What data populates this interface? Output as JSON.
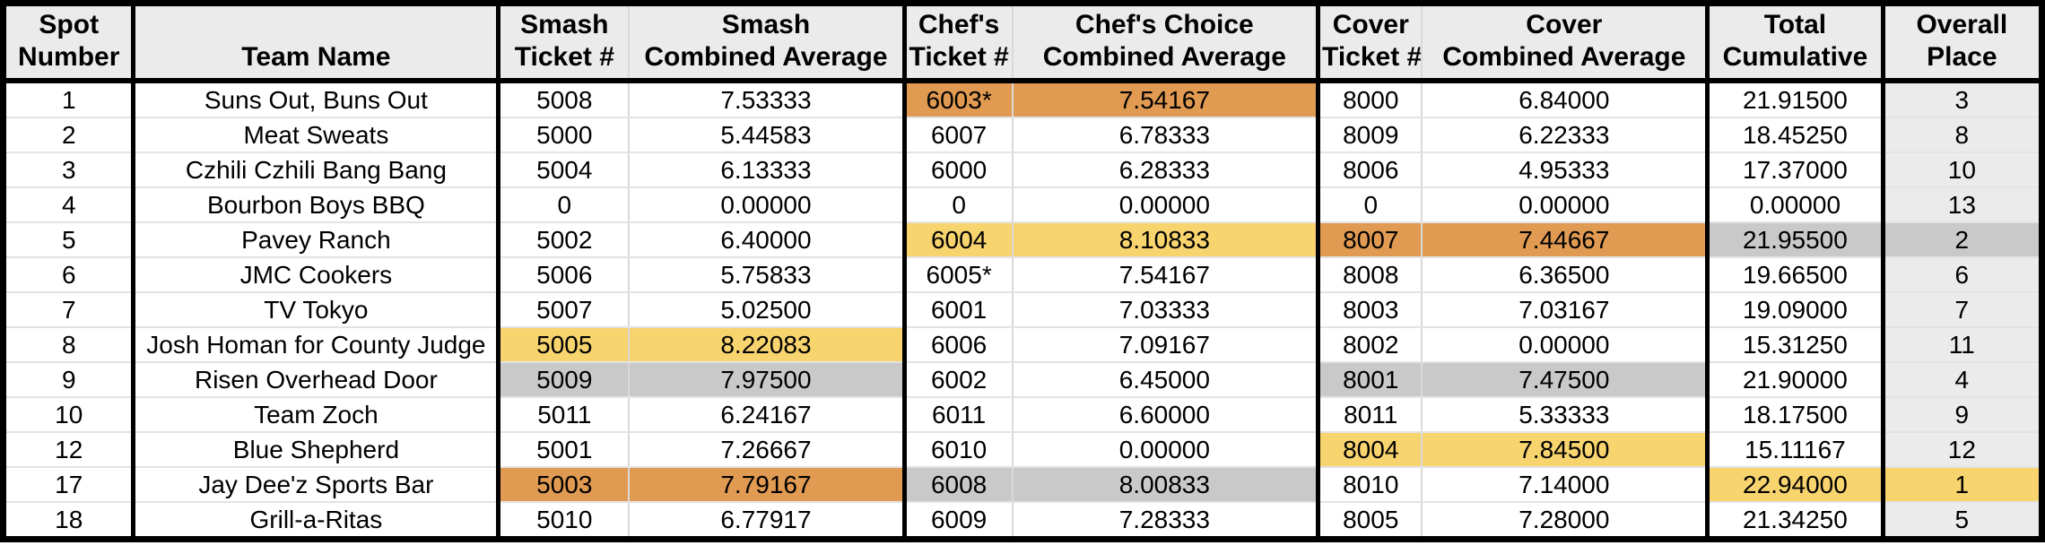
{
  "colors": {
    "header_bg": "#EBEBEB",
    "place_column_bg": "#EBEBEB",
    "highlight_first_yellow": "#F8D46E",
    "highlight_second_gray": "#C9C9C9",
    "highlight_third_orange": "#E19A52",
    "border_black": "#000000"
  },
  "table": {
    "headers": [
      {
        "key": "spot",
        "line1": "Spot",
        "line2": "Number"
      },
      {
        "key": "team",
        "line1": "",
        "line2": "Team Name"
      },
      {
        "key": "smash_ticket",
        "line1": "Smash",
        "line2": "Ticket #"
      },
      {
        "key": "smash_avg",
        "line1": "Smash",
        "line2": "Combined Average"
      },
      {
        "key": "chefs_ticket",
        "line1": "Chef's",
        "line2": "Ticket #"
      },
      {
        "key": "chefs_avg",
        "line1": "Chef's Choice",
        "line2": "Combined Average"
      },
      {
        "key": "cover_ticket",
        "line1": "Cover",
        "line2": "Ticket #"
      },
      {
        "key": "cover_avg",
        "line1": "Cover",
        "line2": "Combined Average"
      },
      {
        "key": "total",
        "line1": "Total",
        "line2": "Cumulative"
      },
      {
        "key": "place",
        "line1": "Overall",
        "line2": "Place"
      }
    ],
    "rows": [
      {
        "spot": "1",
        "team": "Suns Out, Buns Out",
        "smash_ticket": "5008",
        "smash_avg": "7.53333",
        "chefs_ticket": "6003*",
        "chefs_avg": "7.54167",
        "cover_ticket": "8000",
        "cover_avg": "6.84000",
        "total": "21.91500",
        "place": "3",
        "highlights": {
          "chefs_ticket": "orange",
          "chefs_avg": "orange"
        }
      },
      {
        "spot": "2",
        "team": "Meat Sweats",
        "smash_ticket": "5000",
        "smash_avg": "5.44583",
        "chefs_ticket": "6007",
        "chefs_avg": "6.78333",
        "cover_ticket": "8009",
        "cover_avg": "6.22333",
        "total": "18.45250",
        "place": "8",
        "highlights": {}
      },
      {
        "spot": "3",
        "team": "Czhili Czhili Bang Bang",
        "smash_ticket": "5004",
        "smash_avg": "6.13333",
        "chefs_ticket": "6000",
        "chefs_avg": "6.28333",
        "cover_ticket": "8006",
        "cover_avg": "4.95333",
        "total": "17.37000",
        "place": "10",
        "highlights": {}
      },
      {
        "spot": "4",
        "team": "Bourbon Boys BBQ",
        "smash_ticket": "0",
        "smash_avg": "0.00000",
        "chefs_ticket": "0",
        "chefs_avg": "0.00000",
        "cover_ticket": "0",
        "cover_avg": "0.00000",
        "total": "0.00000",
        "place": "13",
        "highlights": {}
      },
      {
        "spot": "5",
        "team": "Pavey Ranch",
        "smash_ticket": "5002",
        "smash_avg": "6.40000",
        "chefs_ticket": "6004",
        "chefs_avg": "8.10833",
        "cover_ticket": "8007",
        "cover_avg": "7.44667",
        "total": "21.95500",
        "place": "2",
        "highlights": {
          "chefs_ticket": "yellow",
          "chefs_avg": "yellow",
          "cover_ticket": "orange",
          "cover_avg": "orange",
          "total": "gray",
          "place": "gray"
        }
      },
      {
        "spot": "6",
        "team": "JMC Cookers",
        "smash_ticket": "5006",
        "smash_avg": "5.75833",
        "chefs_ticket": "6005*",
        "chefs_avg": "7.54167",
        "cover_ticket": "8008",
        "cover_avg": "6.36500",
        "total": "19.66500",
        "place": "6",
        "highlights": {}
      },
      {
        "spot": "7",
        "team": "TV Tokyo",
        "smash_ticket": "5007",
        "smash_avg": "5.02500",
        "chefs_ticket": "6001",
        "chefs_avg": "7.03333",
        "cover_ticket": "8003",
        "cover_avg": "7.03167",
        "total": "19.09000",
        "place": "7",
        "highlights": {}
      },
      {
        "spot": "8",
        "team": "Josh Homan for County Judge",
        "smash_ticket": "5005",
        "smash_avg": "8.22083",
        "chefs_ticket": "6006",
        "chefs_avg": "7.09167",
        "cover_ticket": "8002",
        "cover_avg": "0.00000",
        "total": "15.31250",
        "place": "11",
        "highlights": {
          "smash_ticket": "yellow",
          "smash_avg": "yellow"
        }
      },
      {
        "spot": "9",
        "team": "Risen Overhead Door",
        "smash_ticket": "5009",
        "smash_avg": "7.97500",
        "chefs_ticket": "6002",
        "chefs_avg": "6.45000",
        "cover_ticket": "8001",
        "cover_avg": "7.47500",
        "total": "21.90000",
        "place": "4",
        "highlights": {
          "smash_ticket": "gray",
          "smash_avg": "gray",
          "cover_ticket": "gray",
          "cover_avg": "gray"
        }
      },
      {
        "spot": "10",
        "team": "Team Zoch",
        "smash_ticket": "5011",
        "smash_avg": "6.24167",
        "chefs_ticket": "6011",
        "chefs_avg": "6.60000",
        "cover_ticket": "8011",
        "cover_avg": "5.33333",
        "total": "18.17500",
        "place": "9",
        "highlights": {}
      },
      {
        "spot": "12",
        "team": "Blue Shepherd",
        "smash_ticket": "5001",
        "smash_avg": "7.26667",
        "chefs_ticket": "6010",
        "chefs_avg": "0.00000",
        "cover_ticket": "8004",
        "cover_avg": "7.84500",
        "total": "15.11167",
        "place": "12",
        "highlights": {
          "cover_ticket": "yellow",
          "cover_avg": "yellow"
        }
      },
      {
        "spot": "17",
        "team": "Jay Dee'z Sports Bar",
        "smash_ticket": "5003",
        "smash_avg": "7.79167",
        "chefs_ticket": "6008",
        "chefs_avg": "8.00833",
        "cover_ticket": "8010",
        "cover_avg": "7.14000",
        "total": "22.94000",
        "place": "1",
        "highlights": {
          "smash_ticket": "orange",
          "smash_avg": "orange",
          "chefs_ticket": "gray",
          "chefs_avg": "gray",
          "total": "yellow",
          "place": "yellow"
        }
      },
      {
        "spot": "18",
        "team": "Grill-a-Ritas",
        "smash_ticket": "5010",
        "smash_avg": "6.77917",
        "chefs_ticket": "6009",
        "chefs_avg": "7.28333",
        "cover_ticket": "8005",
        "cover_avg": "7.28000",
        "total": "21.34250",
        "place": "5",
        "highlights": {}
      }
    ]
  }
}
